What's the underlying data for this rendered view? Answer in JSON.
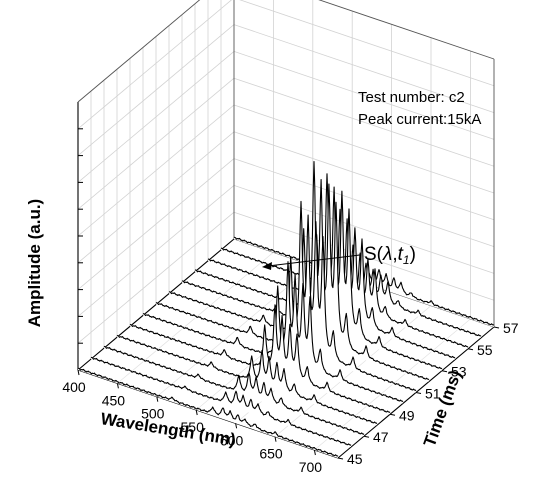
{
  "chart_data": {
    "type": "line",
    "subtype": "3d-waterfall",
    "xlabel": "Wavelength (nm)",
    "ylabel": "Time (ms)",
    "zlabel": "Amplitude (a.u.)",
    "x_ticks": [
      "400",
      "450",
      "500",
      "550",
      "600",
      "650",
      "700"
    ],
    "y_ticks": [
      "45",
      "47",
      "49",
      "51",
      "53",
      "55",
      "57"
    ],
    "xlim": [
      400,
      730
    ],
    "ylim": [
      45,
      57
    ],
    "zlim": [
      0,
      10
    ],
    "grid": true,
    "annotation_lines": [
      "Test number: c2",
      "Peak current:15kA"
    ],
    "marker_label": {
      "prefix": "S(",
      "symbol": "λ",
      "sep": ",",
      "t": "t",
      "sub": "1",
      "suffix": ")"
    },
    "marker_point": {
      "x": 580,
      "y": 51,
      "z": 1.0
    },
    "series": [
      {
        "time": 45,
        "peaks": [
          [
            520,
            0.1
          ],
          [
            571,
            0.25
          ],
          [
            584,
            0.35
          ],
          [
            593,
            0.3
          ],
          [
            603,
            0.25
          ],
          [
            612,
            0.2
          ],
          [
            625,
            0.15
          ],
          [
            650,
            0.1
          ]
        ]
      },
      {
        "time": 46,
        "peaks": [
          [
            520,
            0.1
          ],
          [
            571,
            0.4
          ],
          [
            584,
            0.55
          ],
          [
            593,
            0.45
          ],
          [
            603,
            0.4
          ],
          [
            612,
            0.35
          ],
          [
            625,
            0.2
          ],
          [
            650,
            0.15
          ]
        ]
      },
      {
        "time": 47,
        "peaks": [
          [
            520,
            0.15
          ],
          [
            571,
            0.6
          ],
          [
            584,
            0.8
          ],
          [
            593,
            0.7
          ],
          [
            603,
            0.6
          ],
          [
            612,
            0.5
          ],
          [
            625,
            0.3
          ],
          [
            650,
            0.2
          ]
        ]
      },
      {
        "time": 48,
        "peaks": [
          [
            520,
            0.2
          ],
          [
            571,
            0.9
          ],
          [
            584,
            1.2
          ],
          [
            593,
            1.0
          ],
          [
            603,
            0.9
          ],
          [
            612,
            0.8
          ],
          [
            625,
            0.4
          ],
          [
            650,
            0.25
          ]
        ]
      },
      {
        "time": 49,
        "peaks": [
          [
            520,
            0.25
          ],
          [
            571,
            1.6
          ],
          [
            584,
            2.4
          ],
          [
            593,
            2.0
          ],
          [
            603,
            1.8
          ],
          [
            612,
            1.6
          ],
          [
            625,
            0.6
          ],
          [
            650,
            0.3
          ]
        ]
      },
      {
        "time": 50,
        "peaks": [
          [
            520,
            0.3
          ],
          [
            571,
            2.6
          ],
          [
            584,
            3.5
          ],
          [
            593,
            3.0
          ],
          [
            603,
            2.8
          ],
          [
            612,
            2.5
          ],
          [
            625,
            0.8
          ],
          [
            650,
            0.35
          ]
        ]
      },
      {
        "time": 51,
        "peaks": [
          [
            520,
            0.3
          ],
          [
            571,
            3.2
          ],
          [
            584,
            5.2
          ],
          [
            593,
            4.6
          ],
          [
            603,
            4.5
          ],
          [
            612,
            4.2
          ],
          [
            625,
            1.0
          ],
          [
            650,
            0.4
          ]
        ]
      },
      {
        "time": 52,
        "peaks": [
          [
            520,
            0.3
          ],
          [
            571,
            3.8
          ],
          [
            584,
            6.2
          ],
          [
            593,
            5.4
          ],
          [
            603,
            5.4
          ],
          [
            612,
            5.0
          ],
          [
            625,
            1.2
          ],
          [
            650,
            0.4
          ]
        ]
      },
      {
        "time": 53,
        "peaks": [
          [
            520,
            0.25
          ],
          [
            571,
            3.2
          ],
          [
            584,
            5.4
          ],
          [
            593,
            4.8
          ],
          [
            603,
            4.8
          ],
          [
            612,
            4.4
          ],
          [
            625,
            1.0
          ],
          [
            650,
            0.35
          ]
        ]
      },
      {
        "time": 54,
        "peaks": [
          [
            520,
            0.2
          ],
          [
            571,
            2.4
          ],
          [
            584,
            3.8
          ],
          [
            593,
            3.4
          ],
          [
            603,
            3.2
          ],
          [
            612,
            3.0
          ],
          [
            625,
            0.7
          ],
          [
            650,
            0.3
          ]
        ]
      },
      {
        "time": 55,
        "peaks": [
          [
            520,
            0.15
          ],
          [
            571,
            1.4
          ],
          [
            584,
            2.2
          ],
          [
            593,
            1.9
          ],
          [
            603,
            1.8
          ],
          [
            612,
            1.6
          ],
          [
            625,
            0.4
          ],
          [
            650,
            0.2
          ]
        ]
      },
      {
        "time": 56,
        "peaks": [
          [
            520,
            0.1
          ],
          [
            571,
            0.8
          ],
          [
            584,
            1.2
          ],
          [
            593,
            1.0
          ],
          [
            603,
            0.9
          ],
          [
            612,
            0.8
          ],
          [
            625,
            0.25
          ],
          [
            650,
            0.15
          ]
        ]
      },
      {
        "time": 57,
        "peaks": [
          [
            520,
            0.1
          ],
          [
            571,
            0.4
          ],
          [
            584,
            0.6
          ],
          [
            593,
            0.5
          ],
          [
            603,
            0.45
          ],
          [
            612,
            0.4
          ],
          [
            625,
            0.15
          ],
          [
            650,
            0.1
          ]
        ]
      }
    ]
  }
}
